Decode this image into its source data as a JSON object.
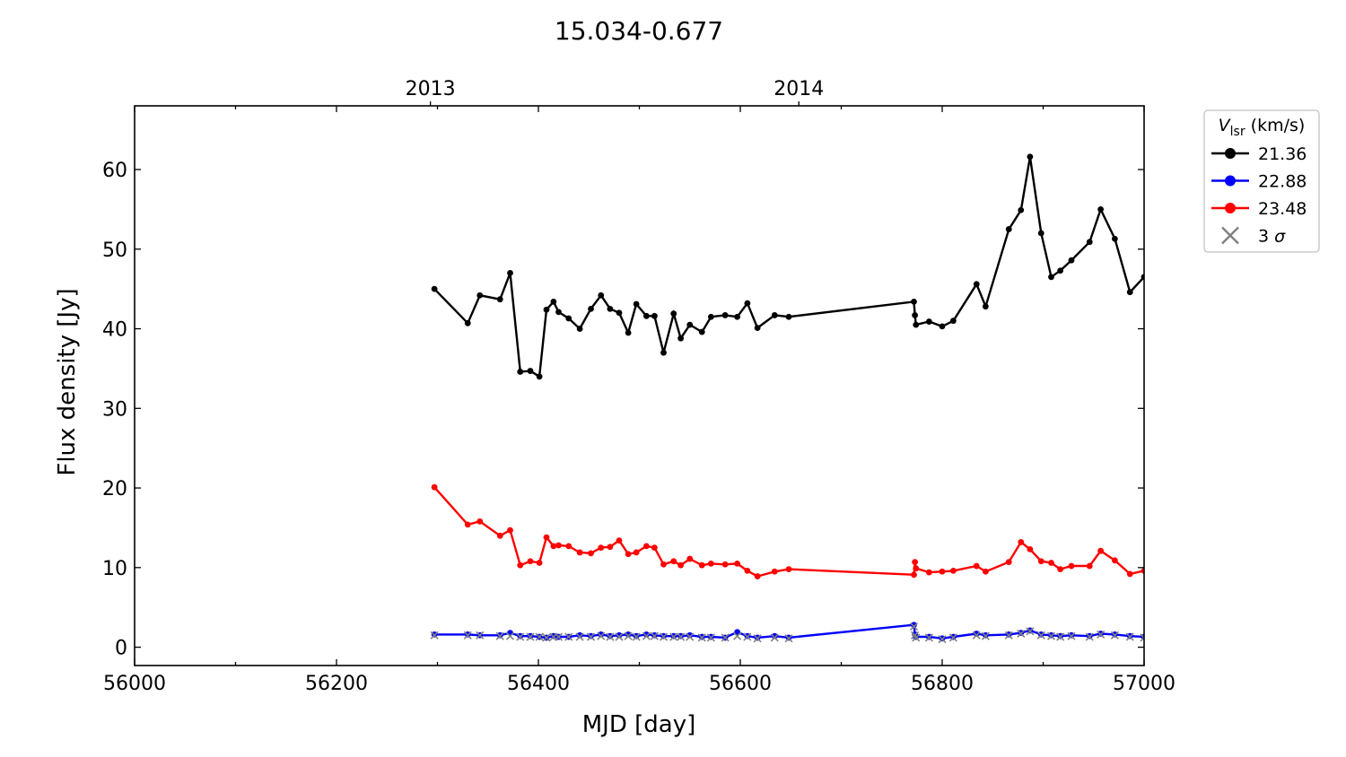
{
  "chart_data": {
    "type": "line",
    "title": "15.034-0.677",
    "xlabel": "MJD [day]",
    "ylabel": "Flux density [Jy]",
    "xlim": [
      56000,
      57000
    ],
    "ylim": [
      -2.3,
      68
    ],
    "grid": false,
    "x_ticks": [
      56000,
      56200,
      56400,
      56600,
      56800,
      57000
    ],
    "y_ticks": [
      0,
      10,
      20,
      30,
      40,
      50,
      60
    ],
    "top_axis": {
      "ticks": [
        {
          "label": "2013",
          "x": 56293
        },
        {
          "label": "2014",
          "x": 56658
        }
      ]
    },
    "legend": {
      "position": "outside-right",
      "title_var": "V",
      "title_sub": "lsr",
      "title_unit": " (km/s)",
      "entries": [
        {
          "label": "21.36",
          "color": "#000000",
          "marker": "dot"
        },
        {
          "label": "22.88",
          "color": "#0000ff",
          "marker": "dot"
        },
        {
          "label": "23.48",
          "color": "#ff0000",
          "marker": "dot"
        },
        {
          "label": "3 ",
          "label_symbol": "σ",
          "color": "#808080",
          "marker": "x"
        }
      ]
    },
    "series": [
      {
        "name": "21.36",
        "color": "#000000",
        "points": [
          [
            56297,
            45.0
          ],
          [
            56330,
            40.7
          ],
          [
            56342,
            44.2
          ],
          [
            56362,
            43.7
          ],
          [
            56372,
            47.0
          ],
          [
            56382,
            34.6
          ],
          [
            56392,
            34.7
          ],
          [
            56401,
            34.0
          ],
          [
            56408,
            42.4
          ],
          [
            56415,
            43.4
          ],
          [
            56420,
            42.1
          ],
          [
            56430,
            41.3
          ],
          [
            56441,
            40.0
          ],
          [
            56452,
            42.5
          ],
          [
            56462,
            44.2
          ],
          [
            56471,
            42.5
          ],
          [
            56480,
            42.0
          ],
          [
            56489,
            39.5
          ],
          [
            56497,
            43.1
          ],
          [
            56507,
            41.6
          ],
          [
            56515,
            41.6
          ],
          [
            56524,
            37.0
          ],
          [
            56534,
            41.9
          ],
          [
            56541,
            38.8
          ],
          [
            56550,
            40.5
          ],
          [
            56562,
            39.6
          ],
          [
            56571,
            41.5
          ],
          [
            56585,
            41.7
          ],
          [
            56597,
            41.5
          ],
          [
            56607,
            43.2
          ],
          [
            56617,
            40.1
          ],
          [
            56634,
            41.7
          ],
          [
            56648,
            41.5
          ],
          [
            56772,
            43.4
          ],
          [
            56773,
            41.7
          ],
          [
            56774,
            40.5
          ],
          [
            56787,
            40.9
          ],
          [
            56800,
            40.3
          ],
          [
            56811,
            41.0
          ],
          [
            56834,
            45.6
          ],
          [
            56843,
            42.8
          ],
          [
            56866,
            52.5
          ],
          [
            56878,
            54.9
          ],
          [
            56887,
            61.6
          ],
          [
            56898,
            52.0
          ],
          [
            56908,
            46.5
          ],
          [
            56917,
            47.3
          ],
          [
            56928,
            48.6
          ],
          [
            56946,
            50.9
          ],
          [
            56957,
            55.0
          ],
          [
            56971,
            51.3
          ],
          [
            56986,
            44.6
          ],
          [
            57000,
            46.5
          ]
        ]
      },
      {
        "name": "22.88",
        "color": "#0000ff",
        "points": [
          [
            56297,
            1.6
          ],
          [
            56330,
            1.6
          ],
          [
            56342,
            1.5
          ],
          [
            56362,
            1.5
          ],
          [
            56372,
            1.8
          ],
          [
            56382,
            1.4
          ],
          [
            56392,
            1.4
          ],
          [
            56401,
            1.3
          ],
          [
            56408,
            1.2
          ],
          [
            56415,
            1.4
          ],
          [
            56420,
            1.3
          ],
          [
            56430,
            1.3
          ],
          [
            56441,
            1.5
          ],
          [
            56452,
            1.4
          ],
          [
            56462,
            1.6
          ],
          [
            56471,
            1.4
          ],
          [
            56480,
            1.5
          ],
          [
            56489,
            1.6
          ],
          [
            56497,
            1.4
          ],
          [
            56507,
            1.6
          ],
          [
            56515,
            1.5
          ],
          [
            56524,
            1.4
          ],
          [
            56534,
            1.4
          ],
          [
            56541,
            1.4
          ],
          [
            56550,
            1.5
          ],
          [
            56562,
            1.3
          ],
          [
            56571,
            1.3
          ],
          [
            56585,
            1.2
          ],
          [
            56597,
            1.9
          ],
          [
            56607,
            1.4
          ],
          [
            56617,
            1.2
          ],
          [
            56634,
            1.4
          ],
          [
            56648,
            1.2
          ],
          [
            56772,
            2.8
          ],
          [
            56773,
            1.6
          ],
          [
            56774,
            1.3
          ],
          [
            56787,
            1.3
          ],
          [
            56800,
            1.1
          ],
          [
            56811,
            1.3
          ],
          [
            56834,
            1.7
          ],
          [
            56843,
            1.5
          ],
          [
            56866,
            1.6
          ],
          [
            56878,
            1.8
          ],
          [
            56887,
            2.1
          ],
          [
            56898,
            1.6
          ],
          [
            56908,
            1.5
          ],
          [
            56917,
            1.4
          ],
          [
            56928,
            1.5
          ],
          [
            56946,
            1.4
          ],
          [
            56957,
            1.7
          ],
          [
            56971,
            1.6
          ],
          [
            56986,
            1.4
          ],
          [
            57000,
            1.3
          ]
        ]
      },
      {
        "name": "23.48",
        "color": "#ff0000",
        "points": [
          [
            56297,
            20.1
          ],
          [
            56330,
            15.4
          ],
          [
            56342,
            15.8
          ],
          [
            56362,
            14.0
          ],
          [
            56372,
            14.7
          ],
          [
            56382,
            10.3
          ],
          [
            56392,
            10.8
          ],
          [
            56401,
            10.6
          ],
          [
            56408,
            13.8
          ],
          [
            56415,
            12.7
          ],
          [
            56420,
            12.8
          ],
          [
            56430,
            12.7
          ],
          [
            56441,
            11.9
          ],
          [
            56452,
            11.8
          ],
          [
            56462,
            12.5
          ],
          [
            56471,
            12.6
          ],
          [
            56480,
            13.4
          ],
          [
            56489,
            11.7
          ],
          [
            56497,
            11.9
          ],
          [
            56507,
            12.7
          ],
          [
            56515,
            12.5
          ],
          [
            56524,
            10.4
          ],
          [
            56534,
            10.8
          ],
          [
            56541,
            10.3
          ],
          [
            56550,
            11.1
          ],
          [
            56562,
            10.3
          ],
          [
            56571,
            10.5
          ],
          [
            56585,
            10.4
          ],
          [
            56597,
            10.5
          ],
          [
            56607,
            9.6
          ],
          [
            56617,
            8.9
          ],
          [
            56634,
            9.5
          ],
          [
            56648,
            9.8
          ],
          [
            56772,
            9.1
          ],
          [
            56773,
            10.7
          ],
          [
            56774,
            9.9
          ],
          [
            56787,
            9.4
          ],
          [
            56800,
            9.5
          ],
          [
            56811,
            9.6
          ],
          [
            56834,
            10.2
          ],
          [
            56843,
            9.5
          ],
          [
            56866,
            10.7
          ],
          [
            56878,
            13.2
          ],
          [
            56887,
            12.3
          ],
          [
            56898,
            10.8
          ],
          [
            56908,
            10.6
          ],
          [
            56917,
            9.8
          ],
          [
            56928,
            10.2
          ],
          [
            56946,
            10.2
          ],
          [
            56957,
            12.1
          ],
          [
            56971,
            10.9
          ],
          [
            56986,
            9.2
          ],
          [
            57000,
            9.6
          ]
        ]
      }
    ],
    "sigma_points": [
      [
        56297,
        1.5
      ],
      [
        56330,
        1.5
      ],
      [
        56342,
        1.5
      ],
      [
        56362,
        1.4
      ],
      [
        56372,
        1.4
      ],
      [
        56382,
        1.3
      ],
      [
        56392,
        1.3
      ],
      [
        56401,
        1.3
      ],
      [
        56408,
        1.2
      ],
      [
        56415,
        1.3
      ],
      [
        56420,
        1.3
      ],
      [
        56430,
        1.3
      ],
      [
        56441,
        1.3
      ],
      [
        56452,
        1.3
      ],
      [
        56462,
        1.4
      ],
      [
        56471,
        1.3
      ],
      [
        56480,
        1.3
      ],
      [
        56489,
        1.4
      ],
      [
        56497,
        1.3
      ],
      [
        56507,
        1.4
      ],
      [
        56515,
        1.4
      ],
      [
        56524,
        1.3
      ],
      [
        56534,
        1.3
      ],
      [
        56541,
        1.3
      ],
      [
        56550,
        1.3
      ],
      [
        56562,
        1.2
      ],
      [
        56571,
        1.2
      ],
      [
        56585,
        1.2
      ],
      [
        56597,
        1.4
      ],
      [
        56607,
        1.3
      ],
      [
        56617,
        1.1
      ],
      [
        56634,
        1.2
      ],
      [
        56648,
        1.1
      ],
      [
        56772,
        2.6
      ],
      [
        56773,
        1.5
      ],
      [
        56774,
        1.2
      ],
      [
        56787,
        1.2
      ],
      [
        56800,
        1.0
      ],
      [
        56811,
        1.2
      ],
      [
        56834,
        1.5
      ],
      [
        56843,
        1.4
      ],
      [
        56866,
        1.5
      ],
      [
        56878,
        1.7
      ],
      [
        56887,
        2.0
      ],
      [
        56898,
        1.5
      ],
      [
        56908,
        1.4
      ],
      [
        56917,
        1.3
      ],
      [
        56928,
        1.4
      ],
      [
        56946,
        1.3
      ],
      [
        56957,
        1.6
      ],
      [
        56971,
        1.5
      ],
      [
        56986,
        1.3
      ],
      [
        57000,
        1.2
      ]
    ]
  }
}
